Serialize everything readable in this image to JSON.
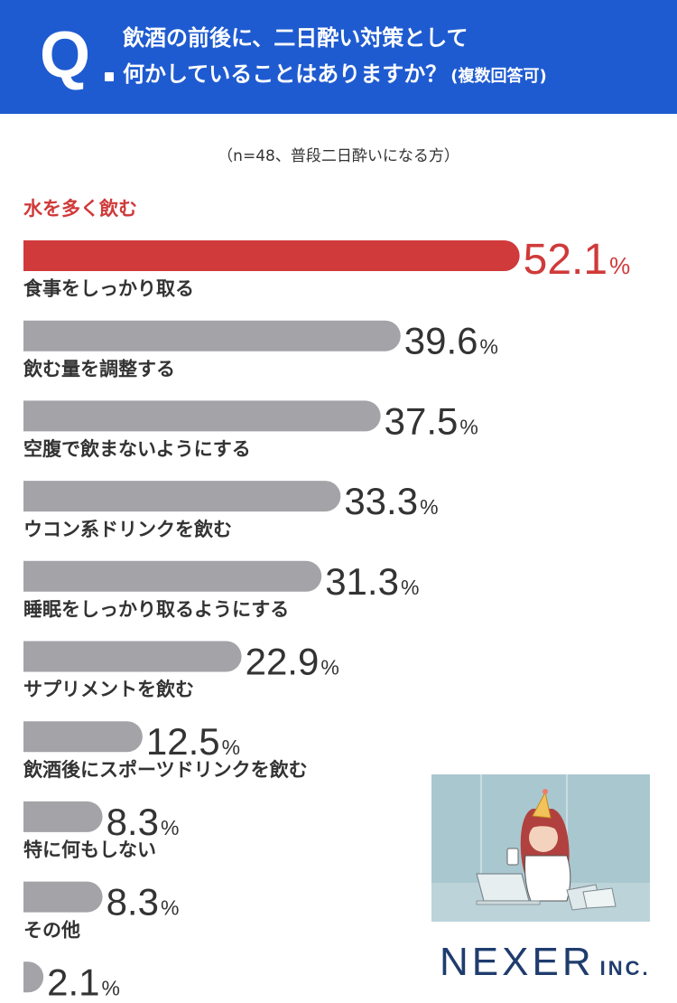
{
  "header": {
    "q_mark": "Q",
    "question_line1": "飲酒の前後に、二日酔い対策として",
    "question_line2": "何かしていることはありますか？",
    "question_note": "(複数回答可)"
  },
  "sample_note": "（n=48、普段二日酔いになる方）",
  "brand": {
    "name": "NEXER",
    "suffix": "INC."
  },
  "colors": {
    "header": "#1f5bd0",
    "highlight": "#d03a3a",
    "bar": "#a3a3a8",
    "text": "#333333"
  },
  "chart_data": {
    "type": "bar",
    "orientation": "horizontal",
    "unit": "%",
    "xlim": [
      0,
      100
    ],
    "categories": [
      "水を多く飲む",
      "食事をしっかり取る",
      "飲む量を調整する",
      "空腹で飲まないようにする",
      "ウコン系ドリンクを飲む",
      "睡眠をしっかり取るようにする",
      "サプリメントを飲む",
      "飲酒後にスポーツドリンクを飲む",
      "特に何もしない",
      "その他"
    ],
    "values": [
      52.1,
      39.6,
      37.5,
      33.3,
      31.3,
      22.9,
      12.5,
      8.3,
      8.3,
      2.1
    ],
    "value_labels": [
      "52.1",
      "39.6",
      "37.5",
      "33.3",
      "31.3",
      "22.9",
      "12.5",
      "8.3",
      "8.3",
      "2.1"
    ],
    "highlight_index": 0
  }
}
